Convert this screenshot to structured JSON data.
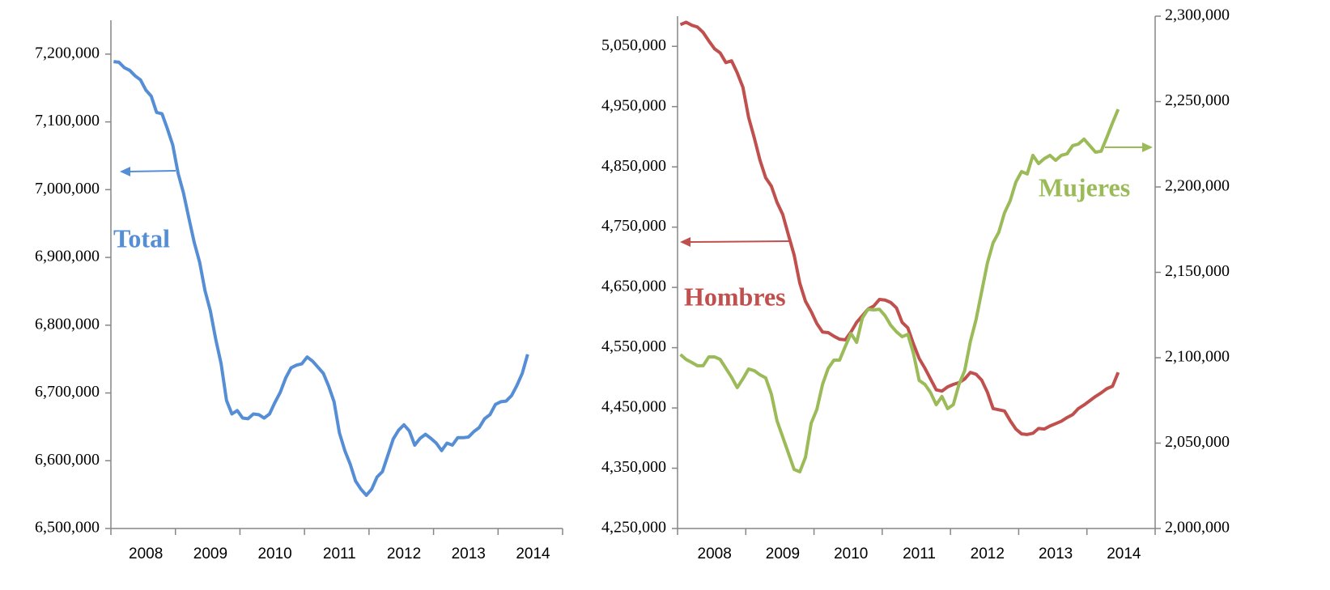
{
  "chart_data": [
    {
      "type": "line",
      "x": [
        null,
        null,
        null,
        null,
        null,
        null,
        "2008",
        null,
        null,
        null,
        null,
        null,
        null,
        null,
        null,
        null,
        null,
        null,
        "2009",
        null,
        null,
        null,
        null,
        null,
        null,
        null,
        null,
        null,
        null,
        null,
        "2010",
        null,
        null,
        null,
        null,
        null,
        null,
        null,
        null,
        null,
        null,
        null,
        "2011",
        null,
        null,
        null,
        null,
        null,
        null,
        null,
        null,
        null,
        null,
        null,
        "2012",
        null,
        null,
        null,
        null,
        null,
        null,
        null,
        null,
        null,
        null,
        null,
        "2013",
        null,
        null,
        null,
        null,
        null,
        null,
        null,
        null,
        null,
        null,
        null,
        "2014",
        null,
        null,
        null,
        null,
        null
      ],
      "ylim": [
        6500000,
        7250000
      ],
      "yticks": [
        {
          "value": 6500000,
          "label": "6,500,000"
        },
        {
          "value": 6600000,
          "label": "6,600,000"
        },
        {
          "value": 6700000,
          "label": "6,700,000"
        },
        {
          "value": 6800000,
          "label": "6,800,000"
        },
        {
          "value": 6900000,
          "label": "6,900,000"
        },
        {
          "value": 7000000,
          "label": "7,000,000"
        },
        {
          "value": 7100000,
          "label": "7,100,000"
        },
        {
          "value": 7200000,
          "label": "7,200,000"
        }
      ],
      "series": [
        {
          "name": "Total",
          "color": "#558ed5",
          "values": [
            7189000,
            7188000,
            7180000,
            7176000,
            7168000,
            7162000,
            7147000,
            7138000,
            7114000,
            7112000,
            7090000,
            7066000,
            7024000,
            6995000,
            6958000,
            6922000,
            6893000,
            6851000,
            6821000,
            6779000,
            6743000,
            6689000,
            6669000,
            6674000,
            6663000,
            6662000,
            6669000,
            6668000,
            6663000,
            6669000,
            6686000,
            6701000,
            6722000,
            6737000,
            6741000,
            6743000,
            6753000,
            6747000,
            6738000,
            6729000,
            6710000,
            6687000,
            6641000,
            6615000,
            6595000,
            6570000,
            6558000,
            6549000,
            6558000,
            6576000,
            6584000,
            6608000,
            6632000,
            6645000,
            6653000,
            6644000,
            6623000,
            6633000,
            6639000,
            6633000,
            6626000,
            6615000,
            6626000,
            6623000,
            6634000,
            6634000,
            6635000,
            6643000,
            6649000,
            6662000,
            6668000,
            6683000,
            6687000,
            6688000,
            6696000,
            6711000,
            6729000,
            6757000,
            null,
            null,
            null,
            null,
            null,
            null
          ]
        }
      ]
    },
    {
      "type": "line",
      "x": [
        null,
        null,
        null,
        null,
        null,
        null,
        "2008",
        null,
        null,
        null,
        null,
        null,
        null,
        null,
        null,
        null,
        null,
        null,
        "2009",
        null,
        null,
        null,
        null,
        null,
        null,
        null,
        null,
        null,
        null,
        null,
        "2010",
        null,
        null,
        null,
        null,
        null,
        null,
        null,
        null,
        null,
        null,
        null,
        "2011",
        null,
        null,
        null,
        null,
        null,
        null,
        null,
        null,
        null,
        null,
        null,
        "2012",
        null,
        null,
        null,
        null,
        null,
        null,
        null,
        null,
        null,
        null,
        null,
        "2013",
        null,
        null,
        null,
        null,
        null,
        null,
        null,
        null,
        null,
        null,
        null,
        "2014",
        null,
        null,
        null,
        null,
        null
      ],
      "ylim": [
        4250000,
        5100000
      ],
      "yticks": [
        {
          "value": 4250000,
          "label": "4,250,000"
        },
        {
          "value": 4350000,
          "label": "4,350,000"
        },
        {
          "value": 4450000,
          "label": "4,450,000"
        },
        {
          "value": 4550000,
          "label": "4,550,000"
        },
        {
          "value": 4650000,
          "label": "4,650,000"
        },
        {
          "value": 4750000,
          "label": "4,750,000"
        },
        {
          "value": 4850000,
          "label": "4,850,000"
        },
        {
          "value": 4950000,
          "label": "4,950,000"
        },
        {
          "value": 5050000,
          "label": "5,050,000"
        }
      ],
      "y2lim": [
        2000000,
        2300000
      ],
      "y2ticks": [
        {
          "value": 2000000,
          "label": "2,000,000"
        },
        {
          "value": 2050000,
          "label": "2,050,000"
        },
        {
          "value": 2100000,
          "label": "2,100,000"
        },
        {
          "value": 2150000,
          "label": "2,150,000"
        },
        {
          "value": 2200000,
          "label": "2,200,000"
        },
        {
          "value": 2250000,
          "label": "2,250,000"
        },
        {
          "value": 2300000,
          "label": "2,300,000"
        }
      ],
      "series": [
        {
          "name": "Hombres",
          "color": "#c0504d",
          "values": [
            5086000,
            5090000,
            5085000,
            5082000,
            5073000,
            5059000,
            5046000,
            5039000,
            5023000,
            5026000,
            5006000,
            4982000,
            4932000,
            4898000,
            4861000,
            4832000,
            4818000,
            4791000,
            4771000,
            4737000,
            4704000,
            4657000,
            4627000,
            4610000,
            4590000,
            4576000,
            4575000,
            4569000,
            4564000,
            4563000,
            4576000,
            4592000,
            4603000,
            4614000,
            4619000,
            4630000,
            4629000,
            4625000,
            4616000,
            4592000,
            4583000,
            4556000,
            4532000,
            4516000,
            4498000,
            4480000,
            4478000,
            4485000,
            4489000,
            4492000,
            4498000,
            4509000,
            4506000,
            4496000,
            4476000,
            4449000,
            4447000,
            4445000,
            4429000,
            4415000,
            4407000,
            4406000,
            4408000,
            4416000,
            4415000,
            4420000,
            4424000,
            4428000,
            4434000,
            4439000,
            4449000,
            4455000,
            4462000,
            4469000,
            4475000,
            4482000,
            4486000,
            4509000,
            null,
            null,
            null,
            null,
            null,
            null
          ]
        },
        {
          "name": "Mujeres",
          "color": "#9bbb59",
          "axis": "y2",
          "values": [
            2101900,
            2099000,
            2097200,
            2095300,
            2095300,
            2100500,
            2100500,
            2099000,
            2093800,
            2088600,
            2082500,
            2087700,
            2093400,
            2092400,
            2090000,
            2088200,
            2078700,
            2063000,
            2053600,
            2044100,
            2034600,
            2033200,
            2041700,
            2061600,
            2069700,
            2084400,
            2093800,
            2098600,
            2098600,
            2106600,
            2114200,
            2109000,
            2123200,
            2128400,
            2128000,
            2128400,
            2124600,
            2119000,
            2115200,
            2112300,
            2113700,
            2102400,
            2086700,
            2084400,
            2079600,
            2072500,
            2077300,
            2070200,
            2072500,
            2084400,
            2092400,
            2109500,
            2122300,
            2138900,
            2155500,
            2167300,
            2173500,
            2184800,
            2191900,
            2202800,
            2209000,
            2207600,
            2218500,
            2213700,
            2216600,
            2218500,
            2215600,
            2218500,
            2219400,
            2224200,
            2225100,
            2228000,
            2224200,
            2220400,
            2220900,
            2229000,
            2237500,
            2245500,
            null,
            null,
            null,
            null,
            null,
            null
          ]
        }
      ]
    }
  ]
}
